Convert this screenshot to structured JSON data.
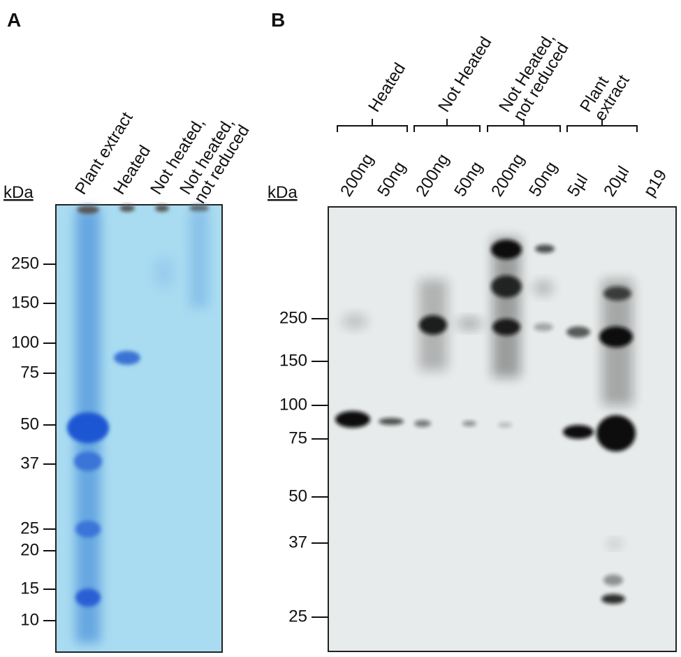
{
  "panels": [
    {
      "label": "A",
      "unit": "kDa",
      "lanes": [
        [
          "Plant extract"
        ],
        [
          "Heated"
        ],
        [
          "Not heated,"
        ],
        [
          "Not heated,",
          "not reduced"
        ]
      ],
      "markers": [
        "250",
        "150",
        "100",
        "75",
        "50",
        "37",
        "25",
        "20",
        "15",
        "10"
      ]
    },
    {
      "label": "B",
      "unit": "kDa",
      "groups": [
        [
          "Heated"
        ],
        [
          "Not Heated"
        ],
        [
          "Not Heated,",
          "not reduced"
        ],
        [
          "Plant",
          "extract"
        ]
      ],
      "lanes": [
        "200ng",
        "50ng",
        "200ng",
        "50ng",
        "200ng",
        "50ng",
        "5µl",
        "20µl",
        "p19"
      ],
      "markers": [
        "250",
        "150",
        "100",
        "75",
        "50",
        "37",
        "25"
      ]
    }
  ]
}
